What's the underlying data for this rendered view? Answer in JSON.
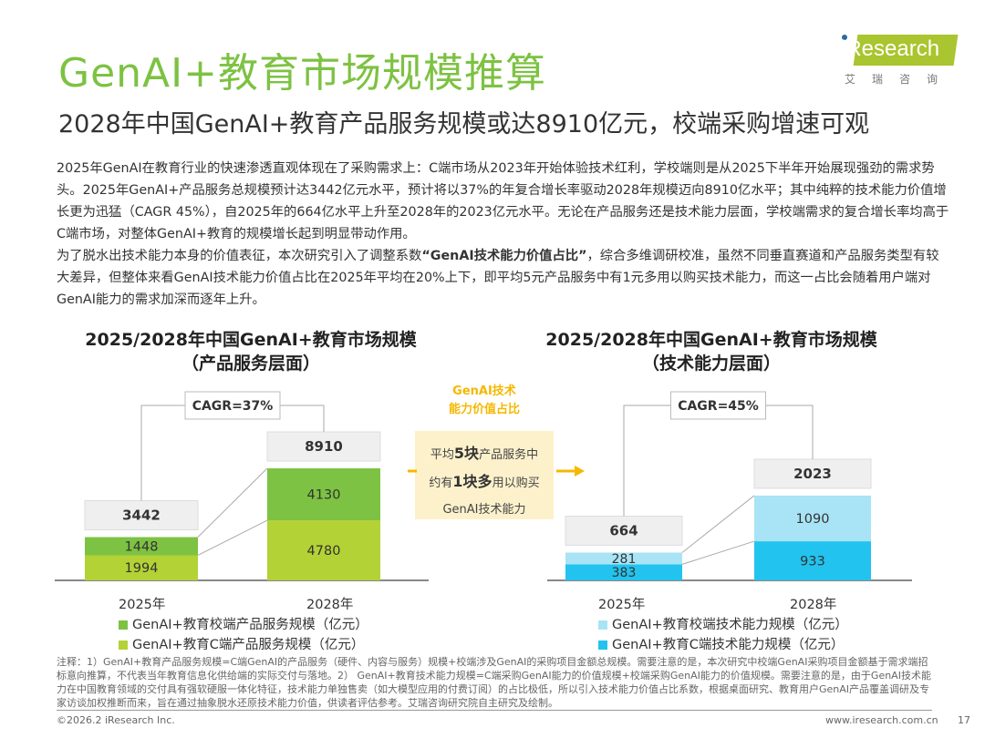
{
  "header": {
    "title": "GenAI+教育市场规模推算",
    "subtitle": "2028年中国GenAI+教育产品服务规模或达8910亿元，校端采购增速可观"
  },
  "logo": {
    "brand": "iResearch",
    "cn": "艾瑞咨询"
  },
  "body": {
    "paragraph1": "2025年GenAI在教育行业的快速渗透直观体现在了采购需求上：C端市场从2023年开始体验技术红利，学校端则是从2025下半年开始展现强劲的需求势头。2025年GenAI+产品服务总规模预计达3442亿元水平，预计将以37%的年复合增长率驱动2028年规模迈向8910亿水平；其中纯粹的技术能力价值增长更为迅猛（CAGR 45%），自2025年的664亿水平上升至2028年的2023亿元水平。无论在产品服务还是技术能力层面，学校端需求的复合增长率均高于C端市场，对整体GenAI+教育的规模增长起到明显带动作用。",
    "paragraph2_a": "为了脱水出技术能力本身的价值表征，本次研究引入了调整系数",
    "paragraph2_bold": "“GenAI技术能力价值占比”",
    "paragraph2_b": "，综合多维调研校准，虽然不同垂直赛道和产品服务类型有较大差异，但整体来看GenAI技术能力价值占比在2025年平均在20%上下，即平均5元产品服务中有1元多用以购买技术能力，而这一占比会随着用户端对GenAI能力的需求加深而逐年上升。"
  },
  "middle": {
    "label_line1": "GenAI技术",
    "label_line2": "能力价值占比",
    "box_l1_a": "平均",
    "box_l1_b": "5块",
    "box_l1_c": "产品服务中",
    "box_l2_a": "约有",
    "box_l2_b": "1块多",
    "box_l2_c": "用以购买",
    "box_l3": "GenAI技术能力",
    "arrow_color": "#f5b800"
  },
  "chart_data": [
    {
      "type": "bar",
      "stacked": true,
      "title_line1": "2025/2028年中国GenAI+教育市场规模",
      "title_line2": "（产品服务层面）",
      "categories": [
        "2025年",
        "2028年"
      ],
      "series": [
        {
          "name": "GenAI+教育C端产品服务规模（亿元）",
          "values": [
            1994,
            4780
          ],
          "color": "#b3d235"
        },
        {
          "name": "GenAI+教育校端产品服务规模（亿元）",
          "values": [
            1448,
            4130
          ],
          "color": "#7dc242"
        }
      ],
      "totals": [
        3442,
        8910
      ],
      "cagr_label": "CAGR=37%",
      "legend_placement": "bottom",
      "grid": false
    },
    {
      "type": "bar",
      "stacked": true,
      "title_line1": "2025/2028年中国GenAI+教育市场规模",
      "title_line2": "（技术能力层面）",
      "categories": [
        "2025年",
        "2028年"
      ],
      "series": [
        {
          "name": "GenAI+教育C端技术能力规模（亿元）",
          "values": [
            383,
            933
          ],
          "color": "#22c3ee"
        },
        {
          "name": "GenAI+教育校端技术能力规模（亿元）",
          "values": [
            281,
            1090
          ],
          "color": "#a8e4f5"
        }
      ],
      "totals": [
        664,
        2023
      ],
      "cagr_label": "CAGR=45%",
      "legend_placement": "bottom",
      "grid": false
    }
  ],
  "notes": "注释：1）GenAI+教育产品服务规模=C端GenAI的产品服务（硬件、内容与服务）规模+校端涉及GenAI的采购项目金额总规模。需要注意的是，本次研究中校端GenAI采购项目金额基于需求端招标意向推算，不代表当年教育信息化供给端的实际交付与落地。2） GenAI+教育技术能力规模=C端采购GenAI能力的价值规模+校端采购GenAI能力的价值规模。需要注意的是，由于GenAI技术能力在中国教育领域的交付具有强软硬服一体化特征，技术能力单独售卖（如大模型应用的付费订阅）的占比极低，所以引入技术能力价值占比系数，根据桌面研究、教育用户GenAI产品覆盖调研及专家访谈加权推断而来，旨在通过抽象脱水还原技术能力价值，供读者评估参考。艾瑞咨询研究院自主研究及绘制。",
  "footer": {
    "copyright": "©2026.2 iResearch Inc.",
    "url": "www.iresearch.com.cn",
    "page": "17"
  }
}
